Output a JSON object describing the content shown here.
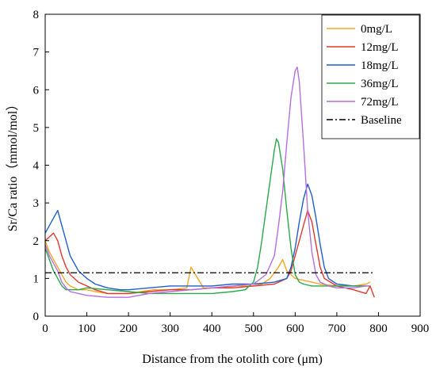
{
  "chart_data": {
    "type": "line",
    "xlabel": "Distance from the otolith core (μm)",
    "ylabel": "Sr/Ca ratio（mmol/mol）",
    "xlim": [
      0,
      900
    ],
    "ylim": [
      0,
      8
    ],
    "xticks": [
      "0",
      "100",
      "200",
      "300",
      "400",
      "500",
      "600",
      "700",
      "800",
      "900"
    ],
    "yticks": [
      "0",
      "1",
      "2",
      "3",
      "4",
      "5",
      "6",
      "7",
      "8"
    ],
    "grid": false,
    "legend_position": "top-right",
    "baseline": {
      "name": "Baseline",
      "y": 1.15,
      "x": [
        0,
        790
      ],
      "style": "dash-dot",
      "color": "#000000"
    },
    "series": [
      {
        "name": "0mg/L",
        "color": "#F5A623",
        "x": [
          0,
          10,
          20,
          30,
          40,
          50,
          60,
          80,
          100,
          120,
          150,
          180,
          200,
          230,
          260,
          300,
          340,
          350,
          380,
          420,
          460,
          500,
          520,
          540,
          560,
          570,
          580,
          600,
          620,
          640,
          660,
          700,
          740,
          770,
          780
        ],
        "y": [
          2.0,
          1.7,
          1.5,
          1.3,
          1.1,
          0.9,
          0.8,
          0.7,
          0.7,
          0.65,
          0.6,
          0.6,
          0.6,
          0.65,
          0.7,
          0.7,
          0.75,
          1.3,
          0.75,
          0.75,
          0.8,
          0.8,
          0.85,
          1.0,
          1.3,
          1.5,
          1.2,
          1.0,
          0.95,
          0.9,
          0.85,
          0.8,
          0.8,
          0.85,
          0.9
        ]
      },
      {
        "name": "12mg/L",
        "color": "#E0382E",
        "x": [
          0,
          10,
          20,
          30,
          40,
          50,
          60,
          80,
          100,
          120,
          150,
          180,
          200,
          250,
          300,
          350,
          400,
          450,
          500,
          550,
          580,
          590,
          600,
          610,
          620,
          630,
          640,
          650,
          660,
          670,
          700,
          740,
          770,
          780,
          790
        ],
        "y": [
          2.0,
          2.1,
          2.2,
          2.0,
          1.6,
          1.3,
          1.1,
          0.9,
          0.8,
          0.7,
          0.6,
          0.6,
          0.6,
          0.65,
          0.7,
          0.7,
          0.75,
          0.75,
          0.8,
          0.85,
          1.0,
          1.2,
          1.6,
          2.0,
          2.4,
          2.8,
          2.5,
          1.9,
          1.3,
          1.0,
          0.8,
          0.7,
          0.6,
          0.8,
          0.5
        ]
      },
      {
        "name": "18mg/L",
        "color": "#1F5FCC",
        "x": [
          0,
          10,
          20,
          30,
          40,
          50,
          60,
          80,
          100,
          120,
          150,
          180,
          200,
          250,
          300,
          350,
          400,
          450,
          500,
          550,
          580,
          590,
          600,
          610,
          620,
          630,
          640,
          650,
          660,
          670,
          680,
          700,
          740,
          770
        ],
        "y": [
          2.2,
          2.4,
          2.6,
          2.8,
          2.4,
          2.0,
          1.6,
          1.2,
          1.0,
          0.85,
          0.75,
          0.7,
          0.7,
          0.75,
          0.8,
          0.8,
          0.8,
          0.85,
          0.85,
          0.9,
          1.0,
          1.3,
          1.8,
          2.5,
          3.1,
          3.5,
          3.2,
          2.6,
          1.9,
          1.3,
          1.0,
          0.85,
          0.8,
          0.8
        ]
      },
      {
        "name": "36mg/L",
        "color": "#2BA84A",
        "x": [
          0,
          10,
          20,
          30,
          40,
          50,
          60,
          80,
          100,
          150,
          200,
          250,
          300,
          350,
          400,
          450,
          480,
          500,
          510,
          520,
          530,
          540,
          550,
          555,
          560,
          570,
          580,
          590,
          600,
          610,
          620,
          640,
          680,
          720,
          760,
          780
        ],
        "y": [
          1.8,
          1.5,
          1.2,
          1.0,
          0.8,
          0.7,
          0.7,
          0.7,
          0.75,
          0.7,
          0.65,
          0.6,
          0.6,
          0.6,
          0.6,
          0.65,
          0.7,
          0.9,
          1.3,
          2.0,
          2.8,
          3.6,
          4.4,
          4.7,
          4.6,
          3.9,
          2.8,
          1.8,
          1.1,
          0.9,
          0.85,
          0.8,
          0.8,
          0.8,
          0.8,
          0.8
        ]
      },
      {
        "name": "72mg/L",
        "color": "#B46FE0",
        "x": [
          0,
          10,
          20,
          30,
          40,
          50,
          60,
          80,
          100,
          150,
          200,
          250,
          300,
          350,
          400,
          450,
          500,
          530,
          550,
          560,
          570,
          580,
          590,
          600,
          605,
          610,
          620,
          630,
          640,
          650,
          660,
          680,
          700,
          740,
          770,
          780
        ],
        "y": [
          1.9,
          1.6,
          1.4,
          1.2,
          0.9,
          0.75,
          0.65,
          0.6,
          0.55,
          0.5,
          0.5,
          0.6,
          0.65,
          0.7,
          0.75,
          0.8,
          0.85,
          1.1,
          1.6,
          2.4,
          3.3,
          4.6,
          5.8,
          6.5,
          6.6,
          6.2,
          4.6,
          2.8,
          1.7,
          1.1,
          0.9,
          0.8,
          0.75,
          0.75,
          0.8,
          0.8
        ]
      }
    ]
  }
}
